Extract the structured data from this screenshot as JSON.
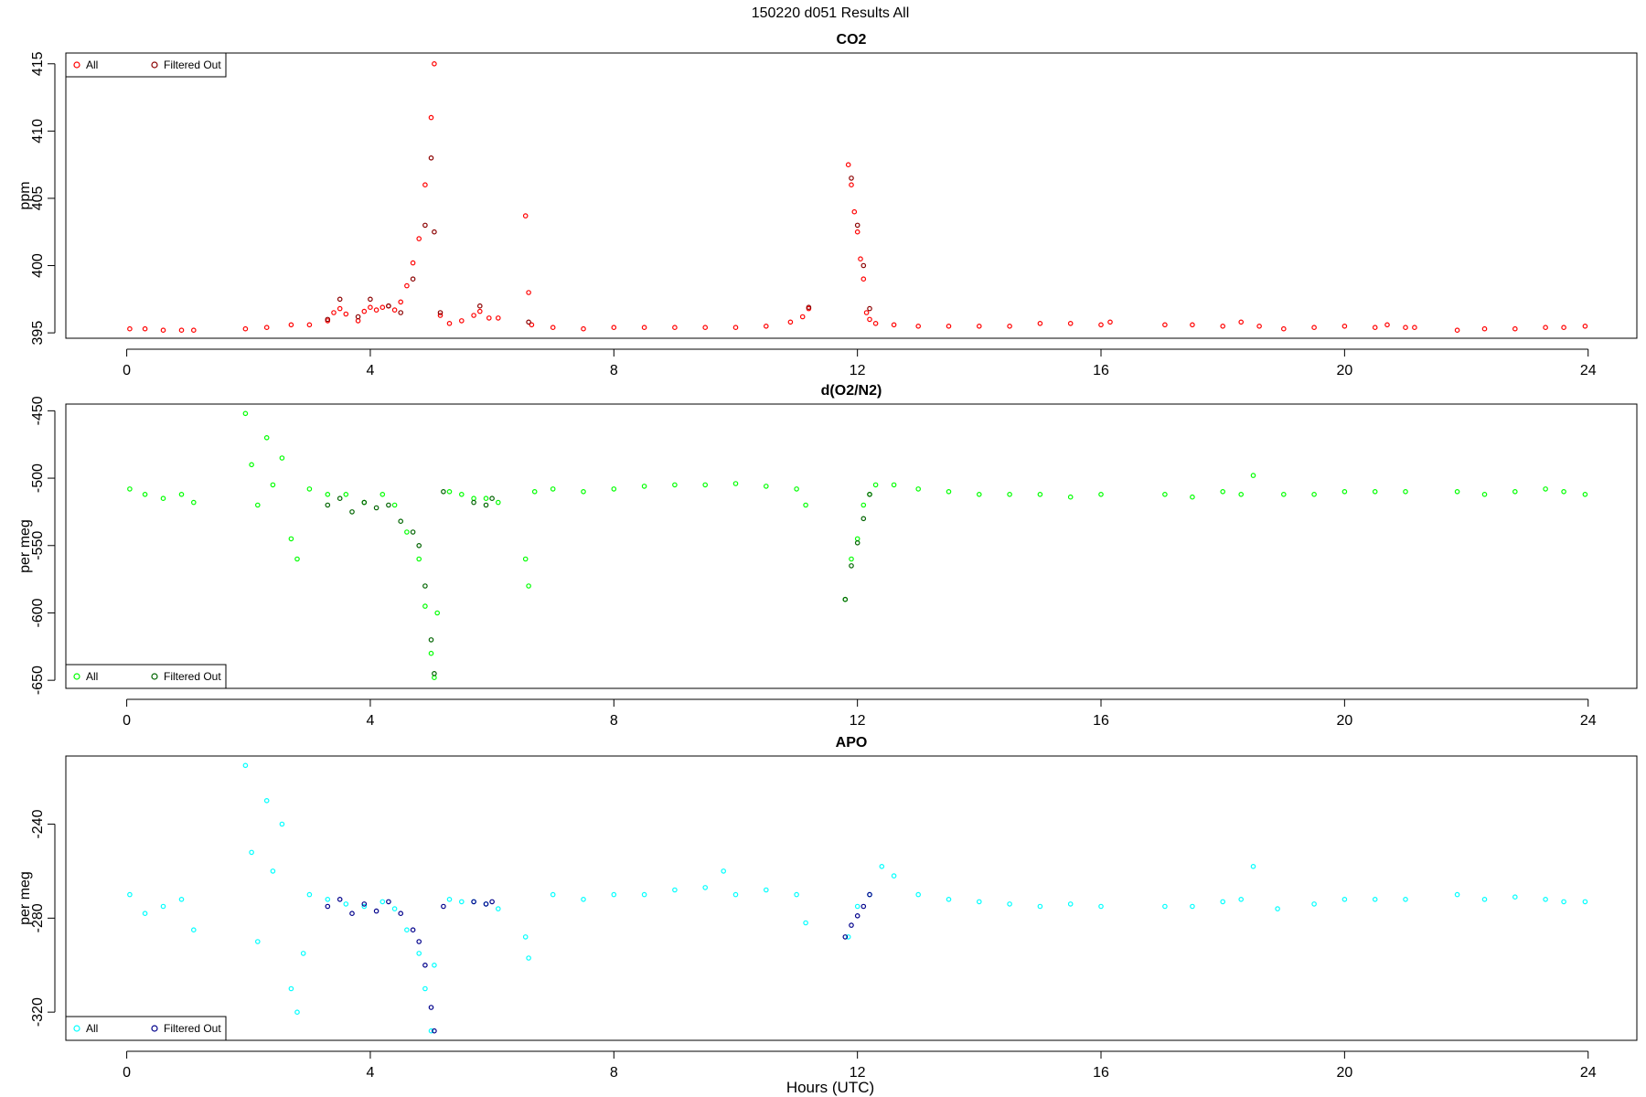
{
  "figure": {
    "title": "150220   d051   Results All",
    "xlabel": "Hours (UTC)"
  },
  "colors": {
    "co2_all": "#ff0000",
    "co2_filtered": "#8b0000",
    "o2_all": "#00ff00",
    "o2_filtered": "#006400",
    "apo_all": "#00ffff",
    "apo_filtered": "#00008b"
  },
  "chart_data": [
    {
      "type": "scatter",
      "title": "CO2",
      "xlabel": "",
      "ylabel": "ppm",
      "xlim": [
        -1.0,
        24.8
      ],
      "ylim": [
        394.6,
        415.8
      ],
      "xticks": [
        0,
        4,
        8,
        12,
        16,
        20,
        24
      ],
      "yticks": [
        395,
        400,
        405,
        410,
        415
      ],
      "legend": {
        "position": "top-left",
        "entries": [
          "All",
          "Filtered Out"
        ]
      },
      "grid": false,
      "series": [
        {
          "name": "All",
          "color": "#ff0000",
          "x": [
            0.05,
            0.3,
            0.6,
            0.9,
            1.1,
            1.95,
            2.3,
            2.7,
            3.0,
            3.3,
            3.4,
            3.5,
            3.6,
            3.8,
            3.9,
            4.0,
            4.1,
            4.2,
            4.3,
            4.4,
            4.5,
            4.6,
            4.7,
            4.8,
            4.9,
            5.0,
            5.05,
            5.15,
            5.3,
            5.5,
            5.7,
            5.8,
            5.95,
            6.1,
            6.55,
            6.6,
            6.65,
            7.0,
            7.5,
            8.0,
            8.5,
            9.0,
            9.5,
            10.0,
            10.5,
            10.9,
            11.1,
            11.2,
            11.85,
            11.9,
            11.95,
            12.0,
            12.05,
            12.1,
            12.15,
            12.2,
            12.3,
            12.6,
            13.0,
            13.5,
            14.0,
            14.5,
            15.0,
            15.5,
            16.0,
            16.15,
            17.05,
            17.5,
            18.0,
            18.3,
            18.6,
            19.0,
            19.5,
            20.0,
            20.5,
            20.7,
            21.0,
            21.15,
            21.85,
            22.3,
            22.8,
            23.3,
            23.6,
            23.95
          ],
          "y": [
            395.3,
            395.3,
            395.2,
            395.2,
            395.2,
            395.3,
            395.4,
            395.6,
            395.6,
            395.9,
            396.5,
            396.8,
            396.4,
            395.9,
            396.6,
            396.9,
            396.7,
            396.9,
            397.0,
            396.7,
            397.3,
            398.5,
            400.2,
            402.0,
            406.0,
            411.0,
            415.0,
            396.3,
            395.7,
            395.9,
            396.3,
            396.6,
            396.1,
            396.1,
            403.7,
            398.0,
            395.6,
            395.4,
            395.3,
            395.4,
            395.4,
            395.4,
            395.4,
            395.4,
            395.5,
            395.8,
            396.2,
            396.8,
            407.5,
            406.0,
            404.0,
            402.5,
            400.5,
            399.0,
            396.5,
            396.0,
            395.7,
            395.6,
            395.5,
            395.5,
            395.5,
            395.5,
            395.7,
            395.7,
            395.6,
            395.8,
            395.6,
            395.6,
            395.5,
            395.8,
            395.5,
            395.3,
            395.4,
            395.5,
            395.4,
            395.6,
            395.4,
            395.4,
            395.2,
            395.3,
            395.3,
            395.4,
            395.4,
            395.5
          ]
        },
        {
          "name": "Filtered Out",
          "color": "#8b0000",
          "x": [
            3.3,
            3.5,
            3.8,
            4.0,
            4.3,
            4.5,
            4.7,
            4.9,
            5.0,
            5.05,
            5.15,
            5.8,
            6.6,
            11.2,
            11.9,
            12.0,
            12.1,
            12.2
          ],
          "y": [
            396.0,
            397.5,
            396.2,
            397.5,
            397.0,
            396.5,
            399.0,
            403.0,
            408.0,
            402.5,
            396.5,
            397.0,
            395.8,
            396.9,
            406.5,
            403.0,
            400.0,
            396.8
          ]
        }
      ]
    },
    {
      "type": "scatter",
      "title": "d(O2/N2)",
      "xlabel": "",
      "ylabel": "per meg",
      "xlim": [
        -1.0,
        24.8
      ],
      "ylim": [
        -656,
        -445
      ],
      "xticks": [
        0,
        4,
        8,
        12,
        16,
        20,
        24
      ],
      "yticks": [
        -450,
        -500,
        -550,
        -600,
        -650
      ],
      "legend": {
        "position": "bottom-left",
        "entries": [
          "All",
          "Filtered Out"
        ]
      },
      "grid": false,
      "series": [
        {
          "name": "All",
          "color": "#00ff00",
          "x": [
            0.05,
            0.3,
            0.6,
            0.9,
            1.1,
            1.95,
            2.05,
            2.15,
            2.3,
            2.4,
            2.55,
            2.7,
            2.8,
            3.0,
            3.3,
            3.6,
            3.9,
            4.2,
            4.4,
            4.6,
            4.8,
            4.9,
            5.0,
            5.05,
            5.1,
            5.3,
            5.5,
            5.7,
            5.9,
            6.1,
            6.55,
            6.6,
            6.7,
            7.0,
            7.5,
            8.0,
            8.5,
            9.0,
            9.5,
            10.0,
            10.5,
            11.0,
            11.15,
            11.8,
            11.9,
            12.0,
            12.1,
            12.2,
            12.3,
            12.6,
            13.0,
            13.5,
            14.0,
            14.5,
            15.0,
            15.5,
            16.0,
            17.05,
            17.5,
            18.0,
            18.3,
            18.5,
            19.0,
            19.5,
            20.0,
            20.5,
            21.0,
            21.85,
            22.3,
            22.8,
            23.3,
            23.6,
            23.95
          ],
          "y": [
            -508,
            -512,
            -515,
            -512,
            -518,
            -452,
            -490,
            -520,
            -470,
            -505,
            -485,
            -545,
            -560,
            -508,
            -512,
            -512,
            -518,
            -512,
            -520,
            -540,
            -560,
            -595,
            -630,
            -648,
            -600,
            -510,
            -512,
            -515,
            -515,
            -518,
            -560,
            -580,
            -510,
            -508,
            -510,
            -508,
            -506,
            -505,
            -505,
            -504,
            -506,
            -508,
            -520,
            -590,
            -560,
            -545,
            -520,
            -512,
            -505,
            -505,
            -508,
            -510,
            -512,
            -512,
            -512,
            -514,
            -512,
            -512,
            -514,
            -510,
            -512,
            -498,
            -512,
            -512,
            -510,
            -510,
            -510,
            -510,
            -512,
            -510,
            -508,
            -510,
            -512
          ]
        },
        {
          "name": "Filtered Out",
          "color": "#006400",
          "x": [
            3.3,
            3.5,
            3.7,
            3.9,
            4.1,
            4.3,
            4.5,
            4.7,
            4.8,
            4.9,
            5.0,
            5.05,
            5.2,
            5.7,
            5.9,
            6.0,
            11.8,
            11.9,
            12.0,
            12.1,
            12.2
          ],
          "y": [
            -520,
            -515,
            -525,
            -518,
            -522,
            -520,
            -532,
            -540,
            -550,
            -580,
            -620,
            -645,
            -510,
            -518,
            -520,
            -515,
            -590,
            -565,
            -548,
            -530,
            -512
          ]
        }
      ]
    },
    {
      "type": "scatter",
      "title": "APO",
      "xlabel": "Hours (UTC)",
      "ylabel": "per meg",
      "xlim": [
        -1.0,
        24.8
      ],
      "ylim": [
        -332,
        -211
      ],
      "xticks": [
        0,
        4,
        8,
        12,
        16,
        20,
        24
      ],
      "yticks": [
        -240,
        -280,
        -320
      ],
      "legend": {
        "position": "bottom-left",
        "entries": [
          "All",
          "Filtered Out"
        ]
      },
      "grid": false,
      "series": [
        {
          "name": "All",
          "color": "#00ffff",
          "x": [
            0.05,
            0.3,
            0.6,
            0.9,
            1.1,
            1.95,
            2.05,
            2.15,
            2.3,
            2.4,
            2.55,
            2.7,
            2.8,
            2.9,
            3.0,
            3.3,
            3.6,
            3.9,
            4.2,
            4.4,
            4.6,
            4.8,
            4.9,
            5.0,
            5.05,
            5.3,
            5.5,
            5.7,
            5.9,
            6.1,
            6.55,
            6.6,
            7.0,
            7.5,
            8.0,
            8.5,
            9.0,
            9.5,
            9.8,
            10.0,
            10.5,
            11.0,
            11.15,
            11.85,
            12.0,
            12.2,
            12.4,
            12.6,
            13.0,
            13.5,
            14.0,
            14.5,
            15.0,
            15.5,
            16.0,
            17.05,
            17.5,
            18.0,
            18.3,
            18.5,
            18.9,
            19.5,
            20.0,
            20.5,
            21.0,
            21.85,
            22.3,
            22.8,
            23.3,
            23.6,
            23.95
          ],
          "y": [
            -270,
            -278,
            -275,
            -272,
            -285,
            -215,
            -252,
            -290,
            -230,
            -260,
            -240,
            -310,
            -320,
            -295,
            -270,
            -272,
            -274,
            -275,
            -273,
            -276,
            -285,
            -295,
            -310,
            -328,
            -300,
            -272,
            -273,
            -273,
            -274,
            -276,
            -288,
            -297,
            -270,
            -272,
            -270,
            -270,
            -268,
            -267,
            -260,
            -270,
            -268,
            -270,
            -282,
            -288,
            -275,
            -270,
            -258,
            -262,
            -270,
            -272,
            -273,
            -274,
            -275,
            -274,
            -275,
            -275,
            -275,
            -273,
            -272,
            -258,
            -276,
            -274,
            -272,
            -272,
            -272,
            -270,
            -272,
            -271,
            -272,
            -273,
            -273
          ]
        },
        {
          "name": "Filtered Out",
          "color": "#00008b",
          "x": [
            3.3,
            3.5,
            3.7,
            3.9,
            4.1,
            4.3,
            4.5,
            4.7,
            4.8,
            4.9,
            5.0,
            5.05,
            5.2,
            5.7,
            5.9,
            6.0,
            11.8,
            11.9,
            12.0,
            12.1,
            12.2
          ],
          "y": [
            -275,
            -272,
            -278,
            -274,
            -277,
            -273,
            -278,
            -285,
            -290,
            -300,
            -318,
            -328,
            -275,
            -273,
            -274,
            -273,
            -288,
            -283,
            -279,
            -275,
            -270
          ]
        }
      ]
    }
  ]
}
